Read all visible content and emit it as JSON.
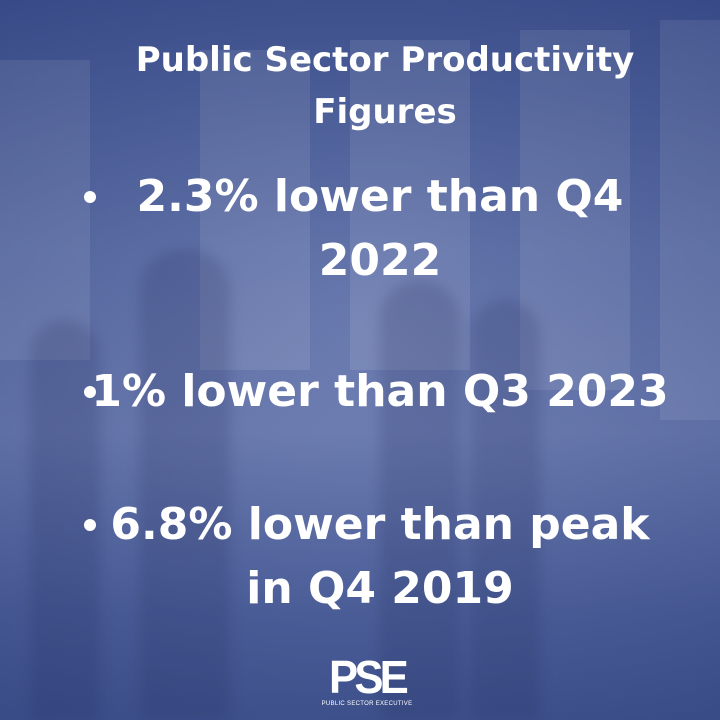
{
  "title": "Public Sector Productivity Figures",
  "items": [
    {
      "label": "2.3% lower than Q4 2022",
      "line1": "2.3% lower than Q4",
      "line2": "2022"
    },
    {
      "label": "1% lower than Q3 2023",
      "line1": "1% lower than Q3 2023"
    },
    {
      "label": "6.8% lower than peak in Q4 2019",
      "line1": "6.8% lower than peak",
      "line2": "in Q4 2019"
    }
  ],
  "logo": {
    "mark": "PSE",
    "subtitle": "PUBLIC SECTOR EXECUTIVE"
  },
  "colors": {
    "text": "#ffffff",
    "background": "#4e5f98"
  }
}
